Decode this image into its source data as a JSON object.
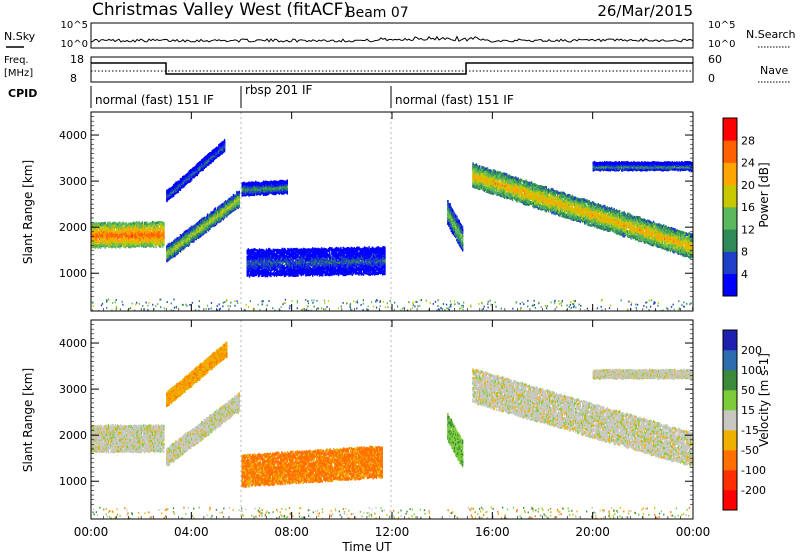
{
  "header": {
    "title": "Christmas Valley West (fitACF)",
    "beam": "Beam 07",
    "date": "26/Mar/2015"
  },
  "nsky_panel": {
    "left_label": "N.Sky",
    "left_ticks": [
      "10^5",
      "10^0"
    ],
    "right_label": "N.Search",
    "right_ticks": [
      "10^5",
      "10^0"
    ]
  },
  "freq_panel": {
    "left_label_line1": "Freq.",
    "left_label_line2": "[MHz]",
    "left_ticks": [
      "18",
      "8"
    ],
    "right_label": "Nave",
    "right_ticks": [
      "60",
      "0"
    ]
  },
  "cpid": {
    "label": "CPID",
    "segments": [
      {
        "label": "normal (fast) 151 IF",
        "start_hour": 0,
        "end_hour": 6
      },
      {
        "label": "rbsp 201 IF",
        "start_hour": 6,
        "end_hour": 12
      },
      {
        "label": "normal (fast) 151 IF",
        "start_hour": 12,
        "end_hour": 24
      }
    ]
  },
  "power_panel": {
    "ylabel": "Slant Range [km]",
    "yticks": [
      "4000",
      "3000",
      "2000",
      "1000"
    ],
    "colorbar_label": "Power [dB]",
    "colorbar_ticks": [
      "28",
      "24",
      "20",
      "16",
      "12",
      "8",
      "4"
    ],
    "colors": [
      "#0000ff",
      "#1e40c8",
      "#2e8b57",
      "#5cb85c",
      "#c8c800",
      "#ffa500",
      "#ff6000",
      "#ff0000"
    ]
  },
  "velocity_panel": {
    "ylabel": "Slant Range [km]",
    "yticks": [
      "4000",
      "3000",
      "2000",
      "1000"
    ],
    "colorbar_label": "Velocity [m s-1]",
    "colorbar_ticks": [
      "200",
      "100",
      "50",
      "15",
      "-15",
      "-50",
      "-100",
      "-200"
    ],
    "colors": [
      "#2020b0",
      "#2e6cb0",
      "#3a8a3a",
      "#7ccc3a",
      "#c8c8c0",
      "#f0b000",
      "#ff7000",
      "#ff3000",
      "#ff0000"
    ]
  },
  "xaxis": {
    "label": "Time UT",
    "ticks": [
      "00:00",
      "04:00",
      "08:00",
      "12:00",
      "16:00",
      "20:00",
      "00:00"
    ]
  },
  "chart_data": {
    "type": "heatmap",
    "x_range_hours": [
      0,
      24
    ],
    "y_range_km": [
      180,
      4500
    ],
    "x_unit": "hours UT",
    "y_unit": "km",
    "power_features": [
      {
        "start_hour": 0.0,
        "end_hour": 2.9,
        "center_km": [
          1850,
          1870
        ],
        "width_km": 500,
        "power_db": 26
      },
      {
        "start_hour": 3.0,
        "end_hour": 5.9,
        "center_km": [
          1450,
          2650
        ],
        "width_km": 320,
        "power_db": 18
      },
      {
        "start_hour": 3.0,
        "end_hour": 5.3,
        "center_km": [
          2700,
          3800
        ],
        "width_km": 200,
        "power_db": 10
      },
      {
        "start_hour": 6.0,
        "end_hour": 7.8,
        "center_km": [
          2850,
          2900
        ],
        "width_km": 250,
        "power_db": 12
      },
      {
        "start_hour": 6.2,
        "end_hour": 11.7,
        "center_km": [
          1250,
          1300
        ],
        "width_km": 550,
        "power_db": 8
      },
      {
        "start_hour": 14.2,
        "end_hour": 14.8,
        "center_km": [
          2350,
          1750
        ],
        "width_km": 500,
        "power_db": 16
      },
      {
        "start_hour": 15.2,
        "end_hour": 24.0,
        "center_km": [
          3150,
          1600
        ],
        "width_km": 480,
        "power_db": 22
      },
      {
        "start_hour": 20.0,
        "end_hour": 24.0,
        "center_km": [
          3350,
          3350
        ],
        "width_km": 140,
        "power_db": 12
      }
    ],
    "velocity_features": [
      {
        "start_hour": 0.0,
        "end_hour": 2.9,
        "center_km": [
          1950,
          1950
        ],
        "width_km": 550,
        "velocity": 0
      },
      {
        "start_hour": 3.0,
        "end_hour": 5.9,
        "center_km": [
          1550,
          2750
        ],
        "width_km": 350,
        "velocity": 0
      },
      {
        "start_hour": 3.0,
        "end_hour": 5.4,
        "center_km": [
          2800,
          3900
        ],
        "width_km": 280,
        "velocity": -40
      },
      {
        "start_hour": 6.0,
        "end_hour": 11.6,
        "center_km": [
          1250,
          1450
        ],
        "width_km": 650,
        "velocity": -60
      },
      {
        "start_hour": 14.2,
        "end_hour": 14.8,
        "center_km": [
          2200,
          1600
        ],
        "width_km": 550,
        "velocity": 40
      },
      {
        "start_hour": 15.2,
        "end_hour": 24.0,
        "center_km": [
          3100,
          1700
        ],
        "width_km": 700,
        "velocity": 0
      },
      {
        "start_hour": 20.0,
        "end_hour": 24.0,
        "center_km": [
          3350,
          3350
        ],
        "width_km": 150,
        "velocity": 0
      }
    ]
  }
}
